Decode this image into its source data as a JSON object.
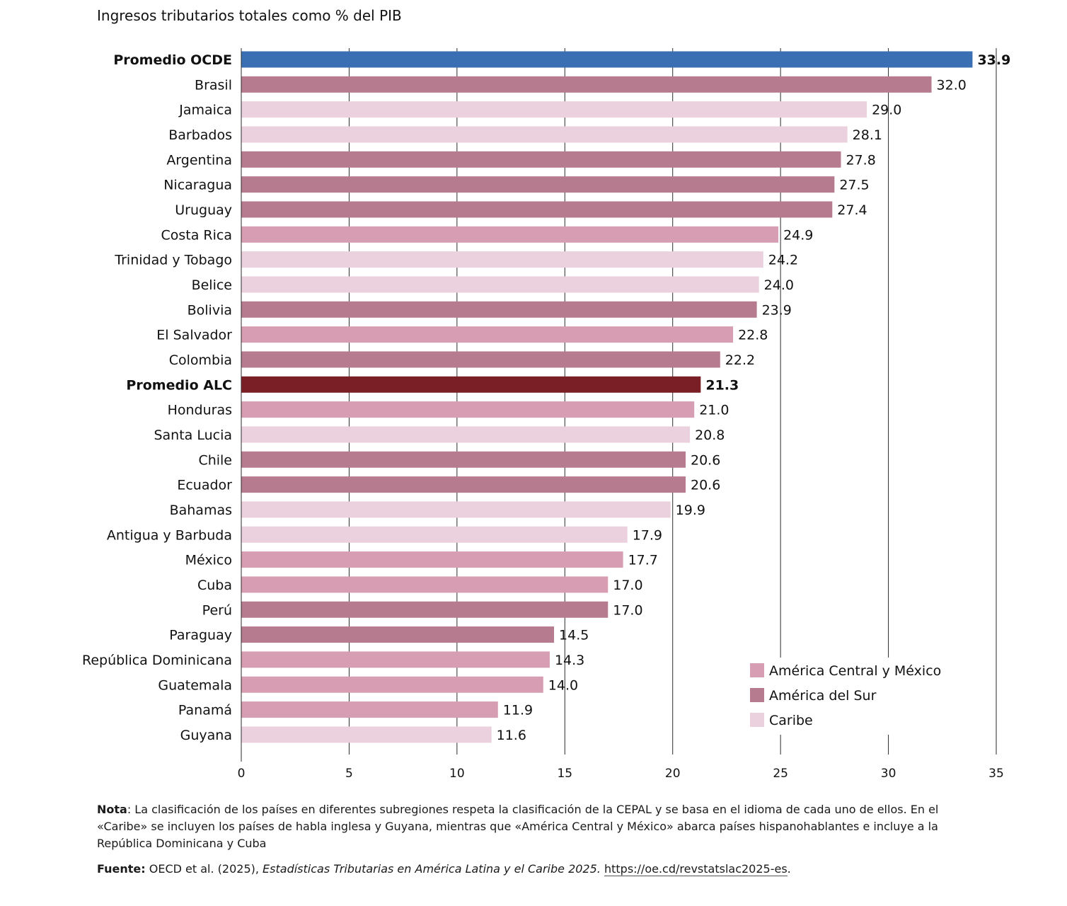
{
  "chart_data": {
    "type": "bar",
    "orientation": "horizontal",
    "title": "Ingresos tributarios totales como % del PIB",
    "categories": [
      "Promedio OCDE",
      "Brasil",
      "Jamaica",
      "Barbados",
      "Argentina",
      "Nicaragua",
      "Uruguay",
      "Costa Rica",
      "Trinidad y Tobago",
      "Belice",
      "Bolivia",
      "El Salvador",
      "Colombia",
      "Promedio ALC",
      "Honduras",
      "Santa Lucia",
      "Chile",
      "Ecuador",
      "Bahamas",
      "Antigua y Barbuda",
      "México",
      "Cuba",
      "Perú",
      "Paraguay",
      "República Dominicana",
      "Guatemala",
      "Panamá",
      "Guyana"
    ],
    "values": [
      33.9,
      32.0,
      29.0,
      28.1,
      27.8,
      27.5,
      27.4,
      24.9,
      24.2,
      24.0,
      23.9,
      22.8,
      22.2,
      21.3,
      21.0,
      20.8,
      20.6,
      20.6,
      19.9,
      17.9,
      17.7,
      17.0,
      17.0,
      14.5,
      14.3,
      14.0,
      11.9,
      11.6
    ],
    "value_labels": [
      "33.9",
      "32.0",
      "29.0",
      "28.1",
      "27.8",
      "27.5",
      "27.4",
      "24.9",
      "24.2",
      "24.0",
      "23.9",
      "22.8",
      "22.2",
      "21.3",
      "21.0",
      "20.8",
      "20.6",
      "20.6",
      "19.9",
      "17.9",
      "17.7",
      "17.0",
      "17.0",
      "14.5",
      "14.3",
      "14.0",
      "11.9",
      "11.6"
    ],
    "groups": [
      "oecd",
      "sur",
      "caribe",
      "caribe",
      "sur",
      "sur",
      "sur",
      "central",
      "caribe",
      "caribe",
      "sur",
      "central",
      "sur",
      "alc",
      "central",
      "caribe",
      "sur",
      "sur",
      "caribe",
      "caribe",
      "central",
      "central",
      "sur",
      "sur",
      "central",
      "central",
      "central",
      "caribe"
    ],
    "bold_categories": [
      "Promedio OCDE",
      "Promedio ALC"
    ],
    "xlim": [
      0,
      35
    ],
    "xticks": [
      0,
      5,
      10,
      15,
      20,
      25,
      30,
      35
    ],
    "xtick_labels": [
      "0",
      "5",
      "10",
      "15",
      "20",
      "25",
      "30",
      "35"
    ],
    "grid": "vertical",
    "legend": {
      "placement": "bottom-right",
      "entries": [
        {
          "key": "central",
          "label": "América Central y México"
        },
        {
          "key": "sur",
          "label": "América del Sur"
        },
        {
          "key": "caribe",
          "label": "Caribe"
        }
      ]
    },
    "colors": {
      "oecd": "#3a70b3",
      "alc": "#7b1f27",
      "sur": "#b67b8e",
      "central": "#d79db3",
      "caribe": "#ebd0dd"
    }
  },
  "notes": {
    "nota_label": "Nota",
    "nota_text": ": La clasificación de los países en diferentes subregiones respeta la clasificación de la CEPAL y se basa en el idioma de cada uno de ellos. En el «Caribe» se incluyen los países de habla inglesa y Guyana, mientras que «América Central y México» abarca países hispanohablantes e incluye a la República Dominicana y Cuba",
    "fuente_label": "Fuente:",
    "fuente_text": " OECD et al. (2025), ",
    "fuente_title": "Estadísticas Tributarias en América Latina y el Caribe 2025.",
    "fuente_link": "https://oe.cd/revstatslac2025-es",
    "fuente_end": "."
  }
}
